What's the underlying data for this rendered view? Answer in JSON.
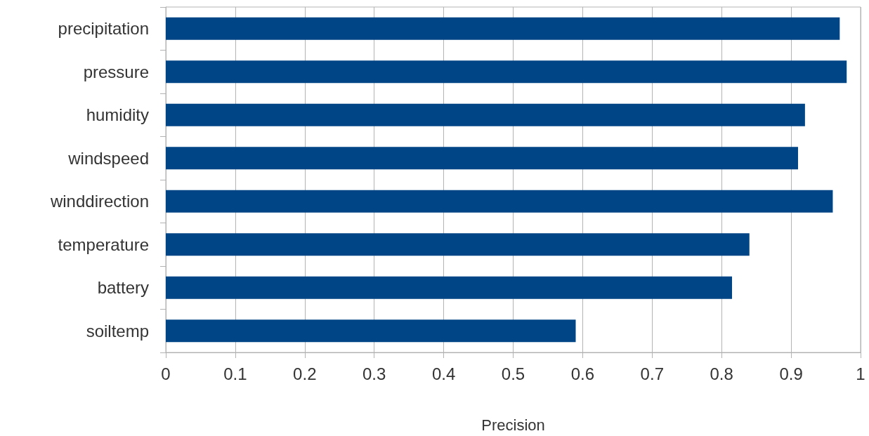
{
  "chart_data": {
    "type": "bar",
    "orientation": "horizontal",
    "xlabel": "Precision",
    "categories": [
      "precipitation",
      "pressure",
      "humidity",
      "windspeed",
      "winddirection",
      "temperature",
      "battery",
      "soiltemp"
    ],
    "values": [
      0.97,
      0.98,
      0.92,
      0.91,
      0.96,
      0.84,
      0.815,
      0.59
    ],
    "color": "#004586",
    "xlim": [
      0,
      1
    ],
    "xticks": [
      0,
      0.1,
      0.2,
      0.3,
      0.4,
      0.5,
      0.6,
      0.7,
      0.8,
      0.9,
      1
    ],
    "grid": "x"
  }
}
